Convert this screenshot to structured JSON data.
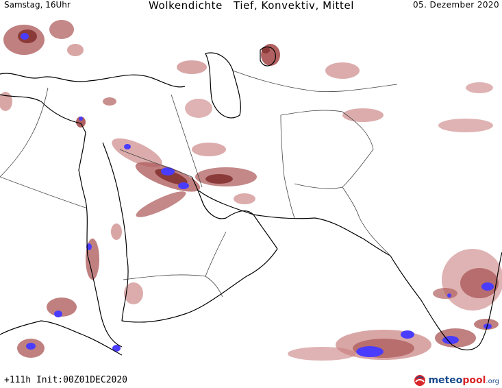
{
  "header": {
    "time_label": "Samstag, 16Uhr",
    "title": "Wolkendichte   Tief, Konvektiv, Mittel",
    "date_label": "05. Dezember 2020"
  },
  "footer": {
    "run_info": "+111h Init:00Z01DEC2020",
    "logo_part1": "meteo",
    "logo_part2": "pool",
    "logo_part3": ".org"
  },
  "map": {
    "colors": {
      "coast": "#000000",
      "border": "#444444",
      "cloud_light": "#d6a3a3",
      "cloud_mid": "#b06060",
      "cloud_dense": "#8b3a3a",
      "cloud_convective": "#4a3cff"
    }
  }
}
